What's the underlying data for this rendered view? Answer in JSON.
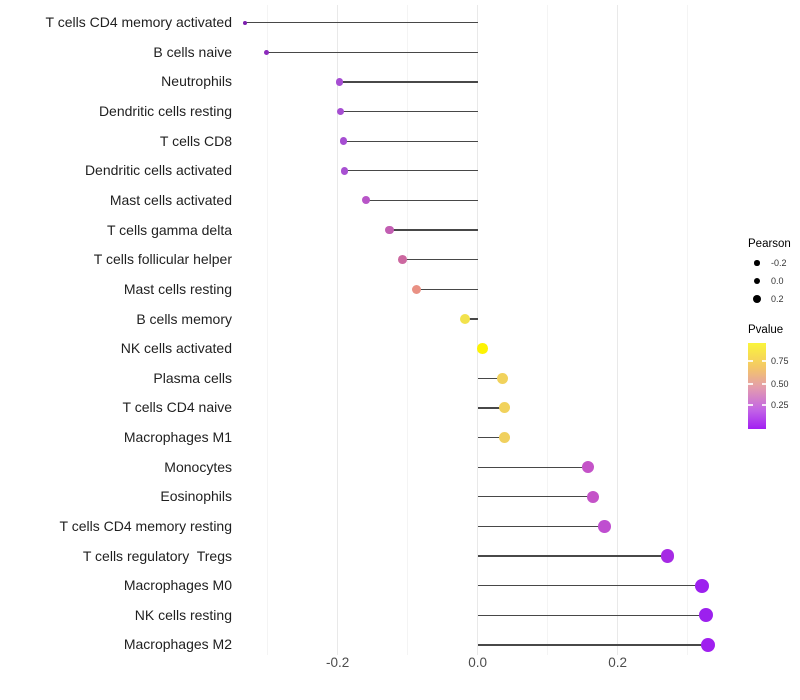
{
  "chart_data": {
    "type": "lollipop",
    "title": "",
    "xlabel": "",
    "ylabel": "",
    "x_tick_values": [
      -0.2,
      0.0,
      0.2
    ],
    "x_tick_labels": [
      "-0.2",
      "0.0",
      "0.2"
    ],
    "xlim": [
      -0.345,
      0.36
    ],
    "grid": "vertical-only",
    "gridline_values": [
      -0.3,
      -0.2,
      -0.1,
      0.0,
      0.1,
      0.2,
      0.3
    ],
    "major_gridline_values": [
      -0.2,
      0.0,
      0.2
    ],
    "rows": [
      {
        "label": "T cells CD4 memory activated",
        "pearson": -0.333,
        "pvalue_color": "#7d1fae"
      },
      {
        "label": "B cells naive",
        "pearson": -0.302,
        "pvalue_color": "#8c2abc"
      },
      {
        "label": "Neutrophils",
        "pearson": -0.197,
        "pvalue_color": "#a64ed2"
      },
      {
        "label": "Dendritic cells resting",
        "pearson": -0.196,
        "pvalue_color": "#a64ed2"
      },
      {
        "label": "T cells CD8",
        "pearson": -0.192,
        "pvalue_color": "#a64ed2"
      },
      {
        "label": "Dendritic cells activated",
        "pearson": -0.19,
        "pvalue_color": "#a850d2"
      },
      {
        "label": "Mast cells activated",
        "pearson": -0.159,
        "pvalue_color": "#b855c8"
      },
      {
        "label": "T cells gamma delta",
        "pearson": -0.126,
        "pvalue_color": "#c25eb2"
      },
      {
        "label": "T cells follicular helper",
        "pearson": -0.108,
        "pvalue_color": "#cc68a0"
      },
      {
        "label": "Mast cells resting",
        "pearson": -0.088,
        "pvalue_color": "#e99184"
      },
      {
        "label": "B cells memory",
        "pearson": -0.018,
        "pvalue_color": "#f2e24c"
      },
      {
        "label": "NK cells activated",
        "pearson": 0.007,
        "pvalue_color": "#fdf303"
      },
      {
        "label": "Plasma cells",
        "pearson": 0.036,
        "pvalue_color": "#f1d25c"
      },
      {
        "label": "T cells CD4 naive",
        "pearson": 0.038,
        "pvalue_color": "#f1d25c"
      },
      {
        "label": "Macrophages M1",
        "pearson": 0.038,
        "pvalue_color": "#f0d05e"
      },
      {
        "label": "Monocytes",
        "pearson": 0.158,
        "pvalue_color": "#c453c8"
      },
      {
        "label": "Eosinophils",
        "pearson": 0.165,
        "pvalue_color": "#c453c8"
      },
      {
        "label": "T cells CD4 memory resting",
        "pearson": 0.181,
        "pvalue_color": "#bf4ed0"
      },
      {
        "label": "T cells regulatory  Tregs",
        "pearson": 0.271,
        "pvalue_color": "#a62ae4"
      },
      {
        "label": "Macrophages M0",
        "pearson": 0.321,
        "pvalue_color": "#9c20ee"
      },
      {
        "label": "NK cells resting",
        "pearson": 0.326,
        "pvalue_color": "#9c20ee"
      },
      {
        "label": "Macrophages M2",
        "pearson": 0.329,
        "pvalue_color": "#a020ef"
      }
    ],
    "legend": {
      "size": {
        "title": "Pearson",
        "labels": [
          "-0.2",
          "0.0",
          "0.2"
        ],
        "dot_color": "#000000"
      },
      "color": {
        "title": "Pvalue",
        "labels": [
          "0.75",
          "0.50",
          "0.25"
        ],
        "gradient": [
          "#faf53b",
          "#f4c766",
          "#e39cae",
          "#c264e6",
          "#a21ff2"
        ]
      }
    },
    "colors": {
      "stem": "#484848",
      "grid_major": "#e9e9e9",
      "grid_minor": "#f4f4f4",
      "axis_text": "#4d4d4d",
      "label_text": "#1f1f1f",
      "background": "#ffffff"
    }
  }
}
